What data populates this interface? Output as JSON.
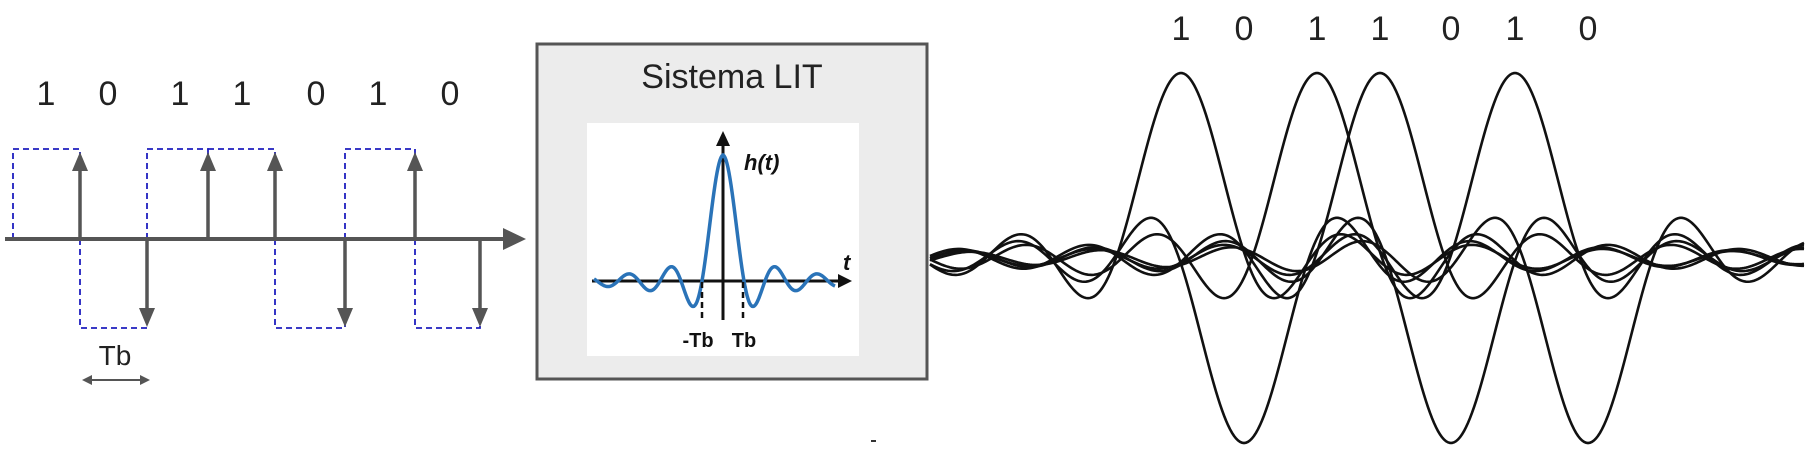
{
  "input_signal": {
    "bits": [
      "1",
      "0",
      "1",
      "1",
      "0",
      "1",
      "0"
    ],
    "bit_label": "Tb",
    "impulse_color": "#555555",
    "pulse_color": "#1f1fbf"
  },
  "lti_system": {
    "title": "Sistema LIT",
    "plot": {
      "y_label": "h(t)",
      "x_label": "t",
      "neg_tick": "-Tb",
      "pos_tick": "Tb",
      "curve_color": "#2a73b8"
    },
    "box_fill": "#ececec",
    "box_border": "#555555"
  },
  "output_signal": {
    "bits": [
      "1",
      "0",
      "1",
      "1",
      "0",
      "1",
      "0"
    ],
    "curve_color": "#111111"
  }
}
